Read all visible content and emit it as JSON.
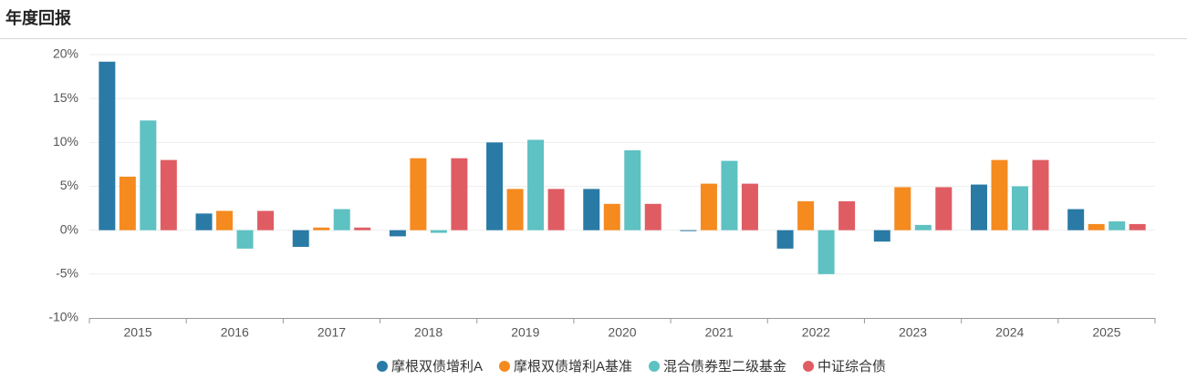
{
  "chart_data": {
    "type": "bar",
    "title": "年度回报",
    "categories": [
      "2015",
      "2016",
      "2017",
      "2018",
      "2019",
      "2020",
      "2021",
      "2022",
      "2023",
      "2024",
      "2025"
    ],
    "series": [
      {
        "name": "摩根双债增利A",
        "color": "#2a7aa6",
        "values": [
          19.2,
          1.9,
          -1.9,
          -0.7,
          10.0,
          4.7,
          -0.1,
          -2.1,
          -1.3,
          5.2,
          2.4
        ]
      },
      {
        "name": "摩根双债增利A基准",
        "color": "#f58a1f",
        "values": [
          6.1,
          2.2,
          0.3,
          8.2,
          4.7,
          3.0,
          5.3,
          3.3,
          4.9,
          8.0,
          0.7
        ]
      },
      {
        "name": "混合债券型二级基金",
        "color": "#5ec1c2",
        "values": [
          12.5,
          -2.1,
          2.4,
          -0.3,
          10.3,
          9.1,
          7.9,
          -5.0,
          0.6,
          5.0,
          1.0
        ]
      },
      {
        "name": "中证综合债",
        "color": "#e05c63",
        "values": [
          8.0,
          2.2,
          0.3,
          8.2,
          4.7,
          3.0,
          5.3,
          3.3,
          4.9,
          8.0,
          0.7
        ]
      }
    ],
    "ylim": [
      -10,
      20
    ],
    "yticks": [
      {
        "value": -10,
        "label": "-10%"
      },
      {
        "value": -5,
        "label": "-5%"
      },
      {
        "value": 0,
        "label": "0%"
      },
      {
        "value": 5,
        "label": "5%"
      },
      {
        "value": 10,
        "label": "10%"
      },
      {
        "value": 15,
        "label": "15%"
      },
      {
        "value": 20,
        "label": "20%"
      }
    ],
    "grid": true,
    "legend": "bottom"
  }
}
